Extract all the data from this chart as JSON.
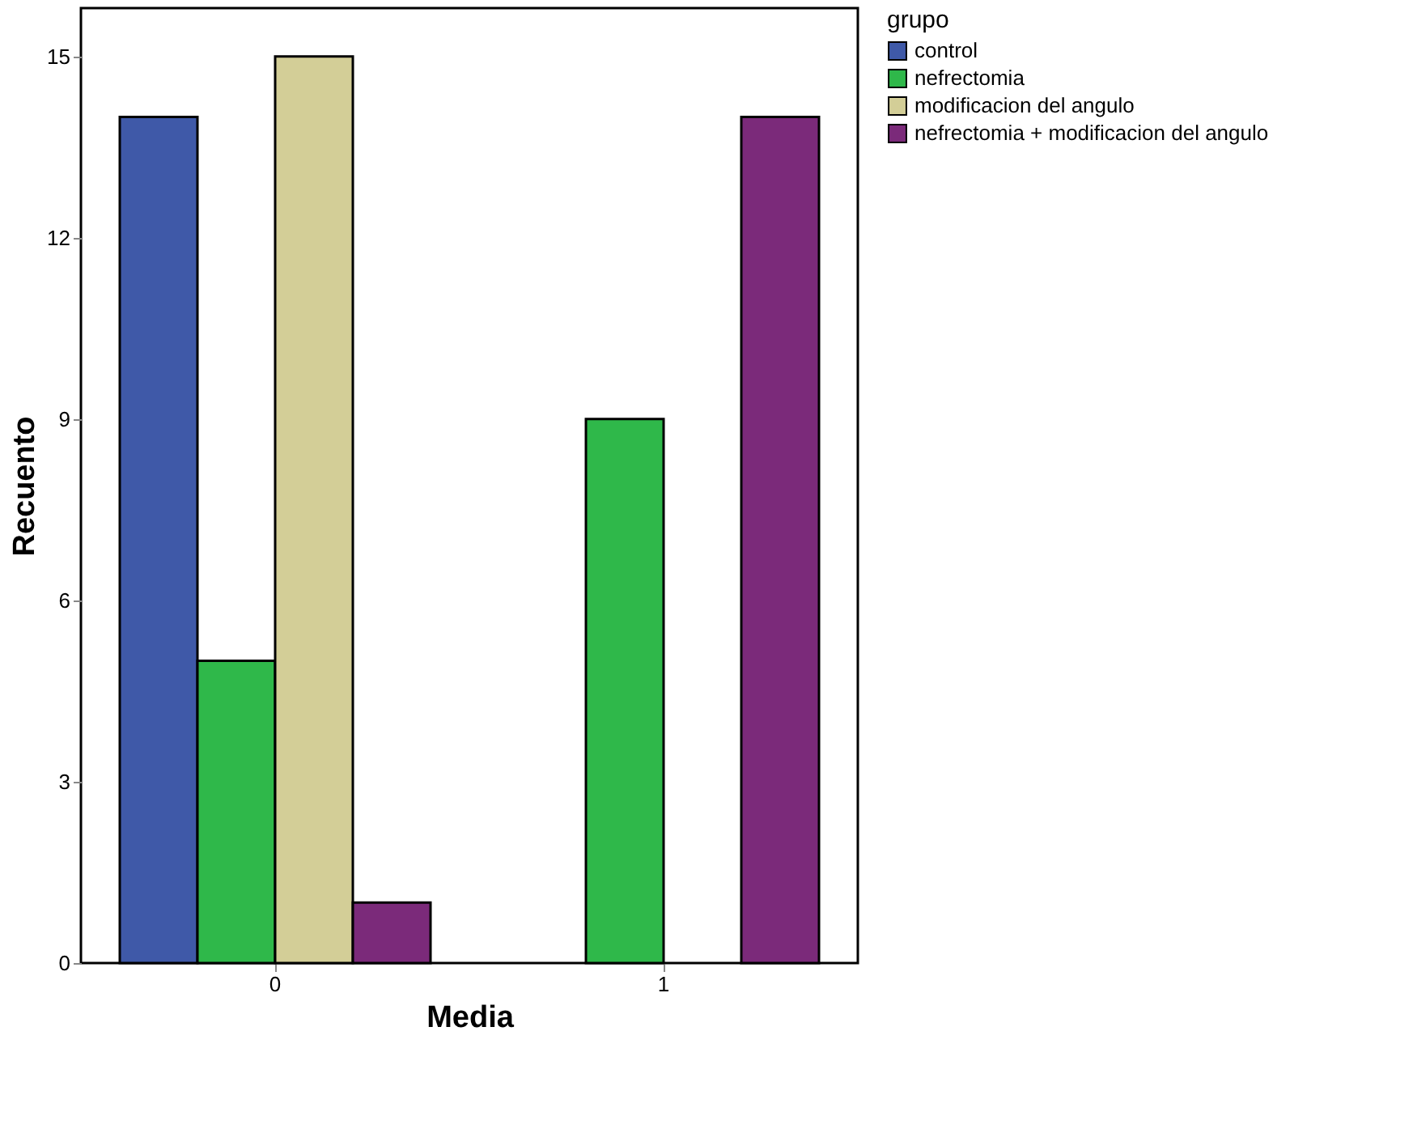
{
  "chart_data": {
    "type": "bar",
    "xlabel": "Media",
    "ylabel": "Recuento",
    "legend_title": "grupo",
    "categories": [
      "0",
      "1"
    ],
    "series": [
      {
        "name": "control",
        "color": "#3f59a8",
        "values": [
          14,
          0
        ]
      },
      {
        "name": "nefrectomia",
        "color": "#2fb84a",
        "values": [
          5,
          9
        ]
      },
      {
        "name": "modificacion del angulo",
        "color": "#d3ce97",
        "values": [
          15,
          0
        ]
      },
      {
        "name": "nefrectomia + modificacion del angulo",
        "color": "#7b2a7a",
        "values": [
          1,
          14
        ]
      }
    ],
    "ylim": [
      0,
      15.8
    ],
    "yticks": [
      0,
      3,
      6,
      9,
      12,
      15
    ],
    "grid": false,
    "legend": "top right"
  }
}
